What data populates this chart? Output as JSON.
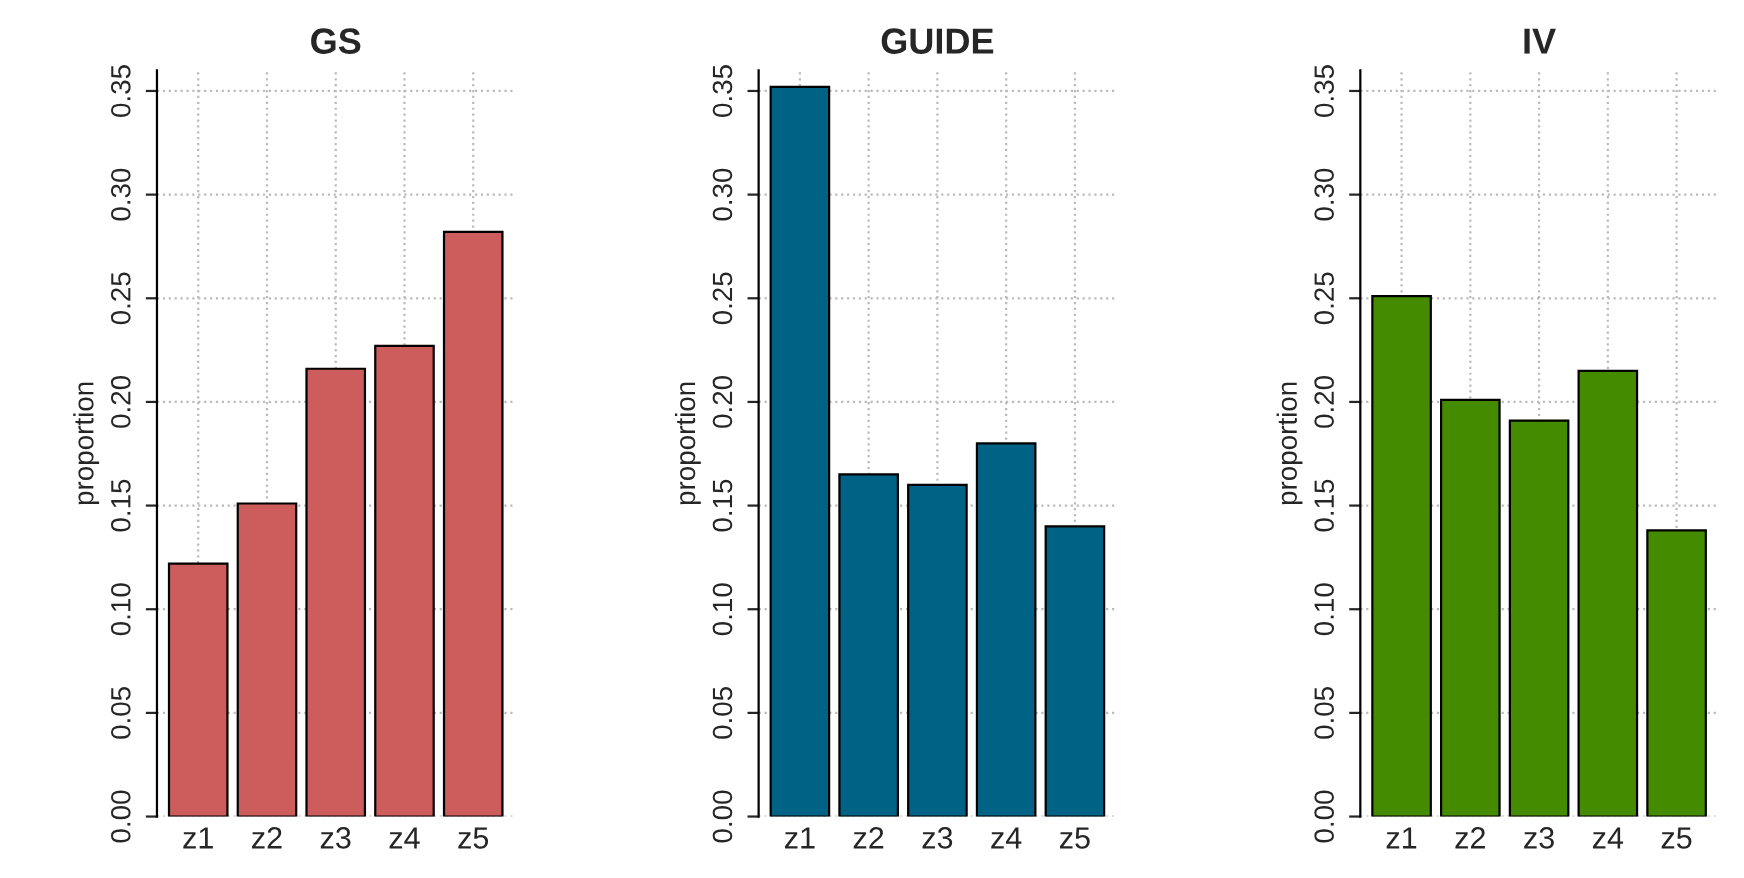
{
  "chart_data": [
    {
      "type": "bar",
      "title": "GS",
      "ylabel": "proportion",
      "categories": [
        "z1",
        "z2",
        "z3",
        "z4",
        "z5"
      ],
      "values": [
        0.122,
        0.151,
        0.216,
        0.227,
        0.282
      ],
      "color": "#cd5c5c",
      "ylim": [
        0,
        0.36
      ],
      "yticks": [
        {
          "value": 0,
          "label": "0.00"
        },
        0.05,
        {
          "value": 0.1,
          "label": "0.10"
        },
        0.15,
        {
          "value": 0.2,
          "label": "0.20"
        },
        0.25,
        {
          "value": 0.3,
          "label": "0.30"
        },
        0.35
      ],
      "grid": true
    },
    {
      "type": "bar",
      "title": "GUIDE",
      "ylabel": "proportion",
      "categories": [
        "z1",
        "z2",
        "z3",
        "z4",
        "z5"
      ],
      "values": [
        0.352,
        0.165,
        0.16,
        0.18,
        0.14
      ],
      "color": "#006385",
      "ylim": [
        0,
        0.36
      ],
      "yticks": [
        {
          "value": 0,
          "label": "0.00"
        },
        0.05,
        {
          "value": 0.1,
          "label": "0.10"
        },
        0.15,
        {
          "value": 0.2,
          "label": "0.20"
        },
        0.25,
        {
          "value": 0.3,
          "label": "0.30"
        },
        0.35
      ],
      "grid": true
    },
    {
      "type": "bar",
      "title": "IV",
      "ylabel": "proportion",
      "categories": [
        "z1",
        "z2",
        "z3",
        "z4",
        "z5"
      ],
      "values": [
        0.251,
        0.201,
        0.191,
        0.215,
        0.138
      ],
      "color": "#458b00",
      "ylim": [
        0,
        0.36
      ],
      "yticks": [
        {
          "value": 0,
          "label": "0.00"
        },
        0.05,
        {
          "value": 0.1,
          "label": "0.10"
        },
        0.15,
        {
          "value": 0.2,
          "label": "0.20"
        },
        0.25,
        {
          "value": 0.3,
          "label": "0.30"
        },
        0.35
      ],
      "grid": true
    }
  ]
}
